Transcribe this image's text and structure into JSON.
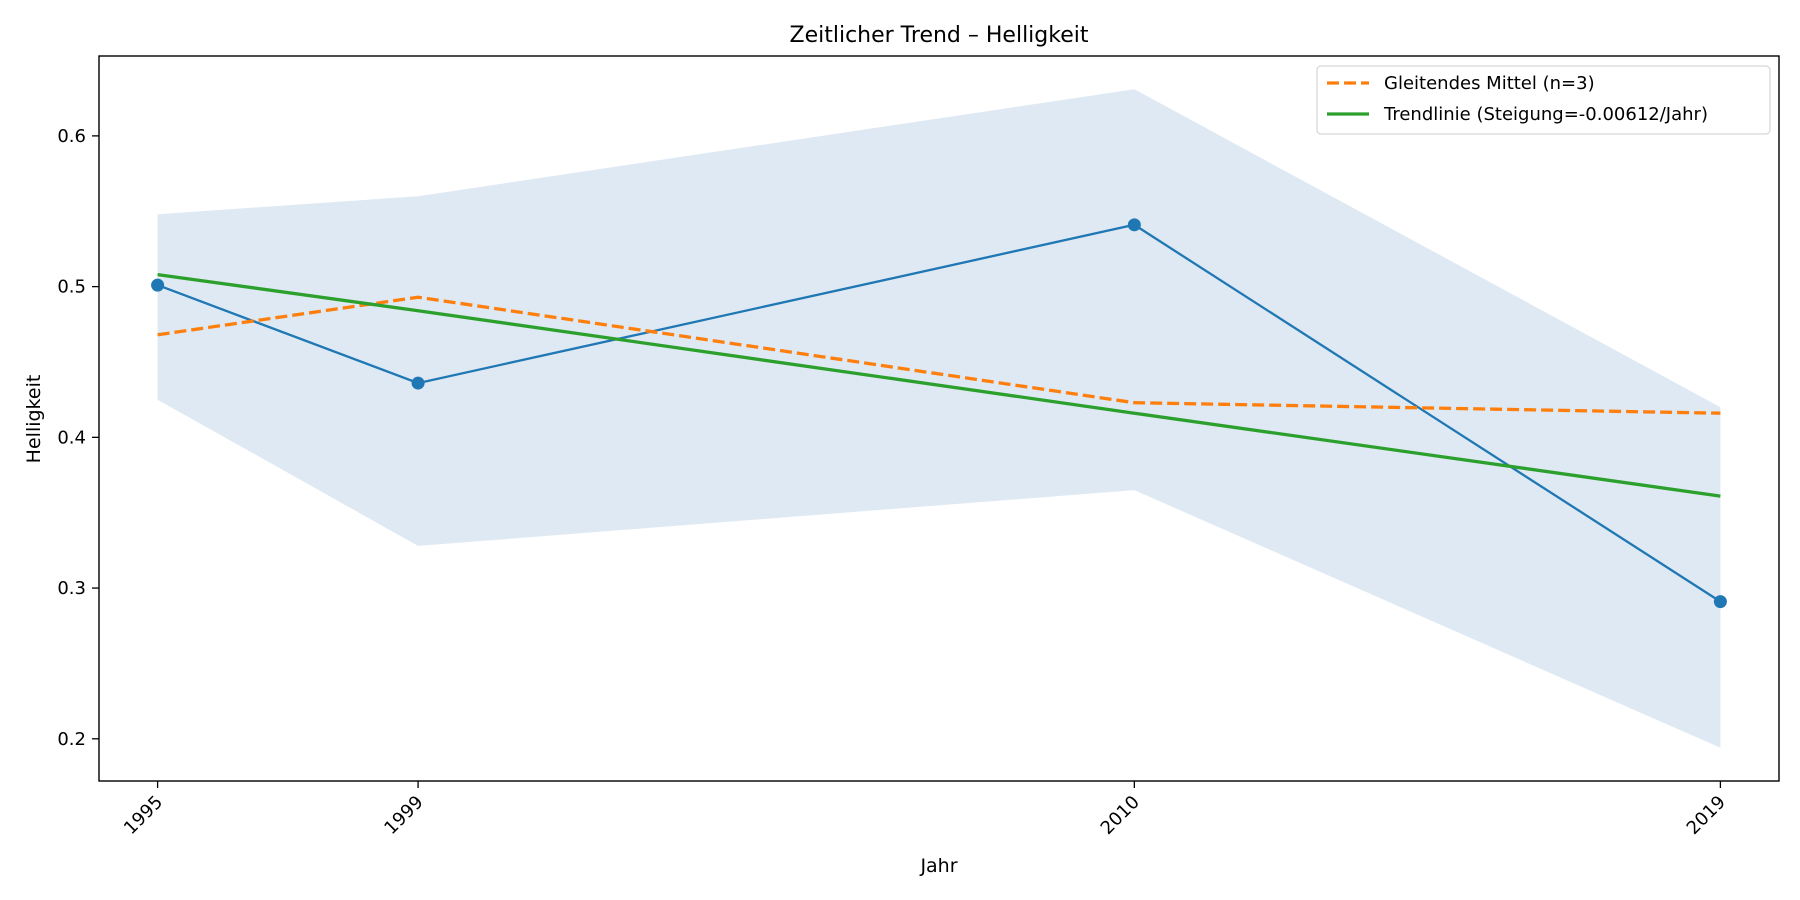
{
  "chart_data": {
    "type": "line",
    "title": "Zeitlicher Trend – Helligkeit",
    "xlabel": "Jahr",
    "ylabel": "Helligkeit",
    "x": [
      1995,
      1999,
      2010,
      2019
    ],
    "xticks": [
      "1995",
      "1999",
      "2010",
      "2019"
    ],
    "yticks": [
      "0.2",
      "0.3",
      "0.4",
      "0.5",
      "0.6"
    ],
    "xlim": [
      1994.1,
      2019.9
    ],
    "ylim": [
      0.172,
      0.653
    ],
    "grid": false,
    "legend_position": "top-right",
    "band": {
      "lower": [
        0.425,
        0.328,
        0.365,
        0.194
      ],
      "upper": [
        0.548,
        0.56,
        0.631,
        0.42
      ],
      "color": "#dee9f3"
    },
    "series": [
      {
        "values": [
          0.501,
          0.436,
          0.541,
          0.291
        ],
        "color": "#1f77b4",
        "style": "solid",
        "markers": true
      },
      {
        "name": "Gleitendes Mittel (n=3)",
        "values": [
          0.468,
          0.493,
          0.423,
          0.416
        ],
        "color": "#ff7f0e",
        "style": "dashed",
        "markers": false
      },
      {
        "name": "Trendlinie (Steigung=-0.00612/Jahr)",
        "values": [
          0.508,
          0.484,
          0.416,
          0.361
        ],
        "color": "#2ca02c",
        "style": "solid",
        "markers": false
      }
    ]
  }
}
